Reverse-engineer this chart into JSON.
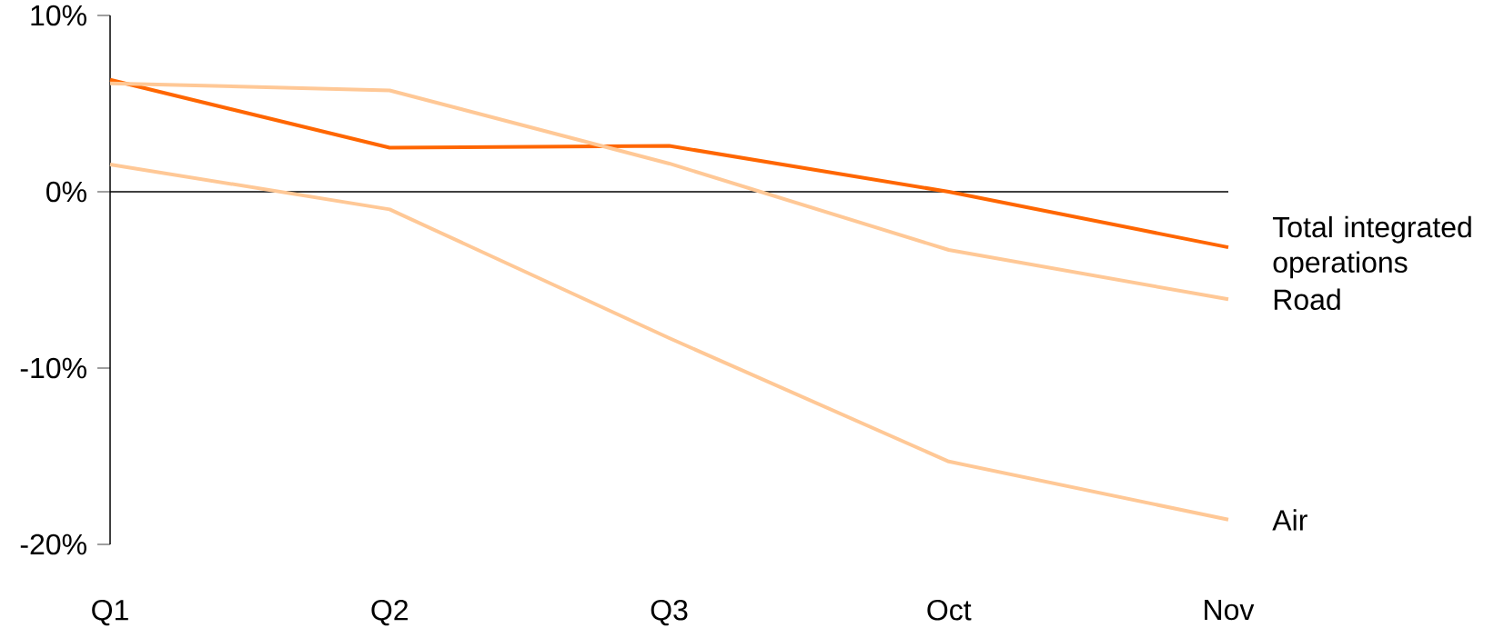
{
  "chart_data": {
    "type": "line",
    "categories": [
      "Q1",
      "Q2",
      "Q3",
      "Oct",
      "Nov"
    ],
    "series": [
      {
        "name": "Total integrated operations",
        "color": "#ff6600",
        "values": [
          6.35,
          2.5,
          2.6,
          0,
          -3.15
        ]
      },
      {
        "name": "Road",
        "color": "#ffc896",
        "values": [
          6.15,
          5.75,
          1.6,
          -3.3,
          -6.1
        ]
      },
      {
        "name": "Air",
        "color": "#ffc896",
        "values": [
          1.55,
          -1.0,
          -8.3,
          -15.3,
          -18.6
        ]
      }
    ],
    "ylim": [
      -20,
      10
    ],
    "yticks": [
      {
        "value": 10,
        "label": "10%"
      },
      {
        "value": 0,
        "label": "0%"
      },
      {
        "value": -10,
        "label": "-10%"
      },
      {
        "value": -20,
        "label": "-20%"
      }
    ],
    "ref_lines": [
      {
        "axis": "y",
        "value": 0,
        "color": "#000000"
      }
    ]
  }
}
